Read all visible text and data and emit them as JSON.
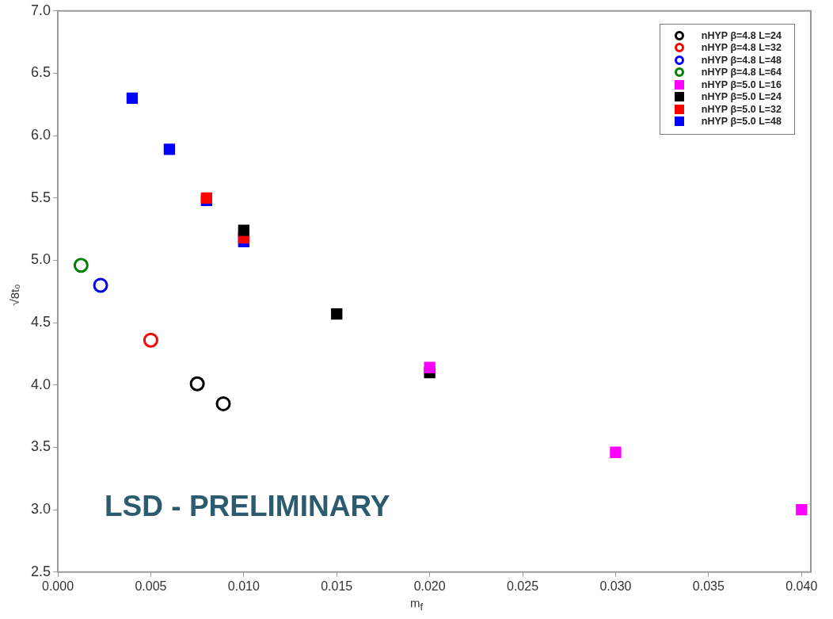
{
  "chart_data": {
    "type": "scatter",
    "xlabel": "m$_{f}$",
    "ylabel": "√8t₀",
    "xlim": [
      0,
      0.0405
    ],
    "ylim": [
      2.5,
      7.0
    ],
    "xticks": [
      {
        "value": 0,
        "label": "0.000"
      },
      {
        "value": 0.005,
        "label": "0.005"
      },
      {
        "value": 0.01,
        "label": "0.010"
      },
      {
        "value": 0.015,
        "label": "0.015"
      },
      {
        "value": 0.02,
        "label": "0.020"
      },
      {
        "value": 0.025,
        "label": "0.025"
      },
      {
        "value": 0.03,
        "label": "0.030"
      },
      {
        "value": 0.035,
        "label": "0.035"
      },
      {
        "value": 0.04,
        "label": "0.040"
      }
    ],
    "yticks": [
      2.5,
      {
        "value": 3,
        "label": "3.0"
      },
      3.5,
      {
        "value": 4,
        "label": "4.0"
      },
      4.5,
      {
        "value": 5,
        "label": "5.0"
      },
      5.5,
      {
        "value": 6,
        "label": "6.0"
      },
      6.5,
      {
        "value": 7,
        "label": "7.0"
      }
    ],
    "grid": false,
    "legend": "top right",
    "annotations": [
      "LSD - PRELIMINARY"
    ],
    "series": [
      {
        "name": "nHYP β=4.8 L=24",
        "color": "#000000",
        "marker": "circle",
        "x": [
          0.0075,
          0.0089
        ],
        "values": [
          4.01,
          3.85
        ]
      },
      {
        "name": "nHYP β=4.8 L=32",
        "color": "#ff0000",
        "marker": "circle",
        "x": [
          0.005
        ],
        "values": [
          4.36
        ]
      },
      {
        "name": "nHYP β=4.8 L=48",
        "color": "#0000ff",
        "marker": "circle",
        "x": [
          0.0023
        ],
        "values": [
          4.8
        ]
      },
      {
        "name": "nHYP β=4.8 L=64",
        "color": "#008000",
        "marker": "circle",
        "x": [
          0.00125
        ],
        "values": [
          4.96
        ]
      },
      {
        "name": "nHYP β=5.0 L=16",
        "color": "#ff00ff",
        "marker": "square",
        "x": [
          0.02,
          0.03,
          0.04
        ],
        "values": [
          4.14,
          3.46,
          3.0
        ]
      },
      {
        "name": "nHYP β=5.0 L=24",
        "color": "#000000",
        "marker": "square",
        "x": [
          0.01,
          0.015,
          0.02
        ],
        "values": [
          5.24,
          4.57,
          4.1
        ]
      },
      {
        "name": "nHYP β=5.0 L=32",
        "color": "#ff0000",
        "marker": "square",
        "x": [
          0.008,
          0.01
        ],
        "values": [
          5.5,
          5.18
        ]
      },
      {
        "name": "nHYP β=5.0 L=48",
        "color": "#0000ff",
        "marker": "square",
        "x": [
          0.004,
          0.006,
          0.008,
          0.01
        ],
        "values": [
          6.3,
          5.89,
          5.48,
          5.15
        ]
      }
    ]
  }
}
